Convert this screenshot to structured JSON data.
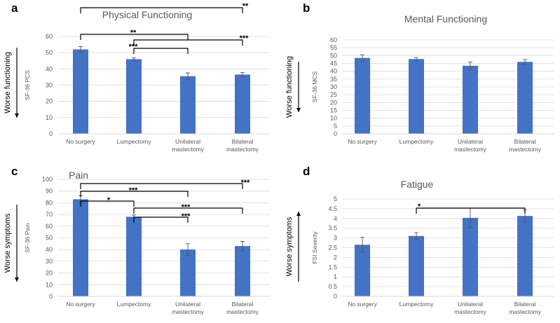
{
  "chart_data": [
    {
      "panel": "a",
      "type": "bar",
      "title": "Physical Functioning",
      "ylabel": "SF-36 PCS",
      "side_label": "Worse functioning",
      "side_arrow": "down",
      "ylim": [
        0,
        60
      ],
      "yticks": [
        0,
        10,
        20,
        30,
        40,
        50,
        60
      ],
      "categories": [
        "No surgery",
        "Lumpectomy",
        "Unilateral mastectomy",
        "Bilateral mastectomy"
      ],
      "values": [
        52,
        46,
        35.5,
        36.5
      ],
      "errors": [
        1.8,
        0.8,
        2,
        1.3
      ],
      "significance": [
        {
          "from": 0,
          "to": 3,
          "label": "**"
        },
        {
          "from": 0,
          "to": 2,
          "label": "**"
        },
        {
          "from": 1,
          "to": 3,
          "label": "***"
        },
        {
          "from": 1,
          "to": 2,
          "label": "***"
        }
      ]
    },
    {
      "panel": "b",
      "type": "bar",
      "title": "Mental Functioning",
      "ylabel": "SF-36 MCS",
      "side_label": "Worse functioning",
      "side_arrow": "down",
      "ylim": [
        0,
        60
      ],
      "yticks": [
        0,
        5,
        10,
        15,
        20,
        25,
        30,
        35,
        40,
        45,
        50,
        55,
        60
      ],
      "categories": [
        "No surgery",
        "Lumpectomy",
        "Unilateral mastectomy",
        "Bilateral mastectomy"
      ],
      "values": [
        48.5,
        47.8,
        43.5,
        46
      ],
      "errors": [
        2,
        1,
        2.5,
        1.5
      ],
      "significance": []
    },
    {
      "panel": "c",
      "type": "bar",
      "title": "Pain",
      "ylabel": "SF-36 Pain",
      "side_label": "Worse symptoms",
      "side_arrow": "down",
      "ylim": [
        0,
        100
      ],
      "yticks": [
        0,
        10,
        20,
        30,
        40,
        50,
        60,
        70,
        80,
        90,
        100
      ],
      "categories": [
        "No surgery",
        "Lumpectomy",
        "Unilateral mastectomy",
        "Bilateral mastectomy"
      ],
      "values": [
        83,
        68,
        40,
        43
      ],
      "errors": [
        3,
        1.5,
        5,
        4
      ],
      "significance": [
        {
          "from": 0,
          "to": 3,
          "label": "***"
        },
        {
          "from": 0,
          "to": 2,
          "label": "***"
        },
        {
          "from": 0,
          "to": 1,
          "label": "*"
        },
        {
          "from": 1,
          "to": 3,
          "label": "***"
        },
        {
          "from": 1,
          "to": 2,
          "label": "***"
        }
      ]
    },
    {
      "panel": "d",
      "type": "bar",
      "title": "Fatigue",
      "ylabel": "FSI Severity",
      "side_label": "Worse symptoms",
      "side_arrow": "up",
      "ylim": [
        0,
        5
      ],
      "yticks": [
        0,
        0.5,
        1,
        1.5,
        2,
        2.5,
        3,
        3.5,
        4,
        4.5,
        5
      ],
      "categories": [
        "No surgery",
        "Lumpectomy",
        "Unilateral mastectomy",
        "Bilateral mastectomy"
      ],
      "values": [
        2.65,
        3.1,
        4.03,
        4.13
      ],
      "errors": [
        0.38,
        0.17,
        0.5,
        0.3
      ],
      "significance": [
        {
          "from": 1,
          "to": 3,
          "label": "*"
        }
      ]
    }
  ],
  "colors": {
    "bar": "#4472C4",
    "grid": "#d9d9d9",
    "text": "#595959"
  }
}
